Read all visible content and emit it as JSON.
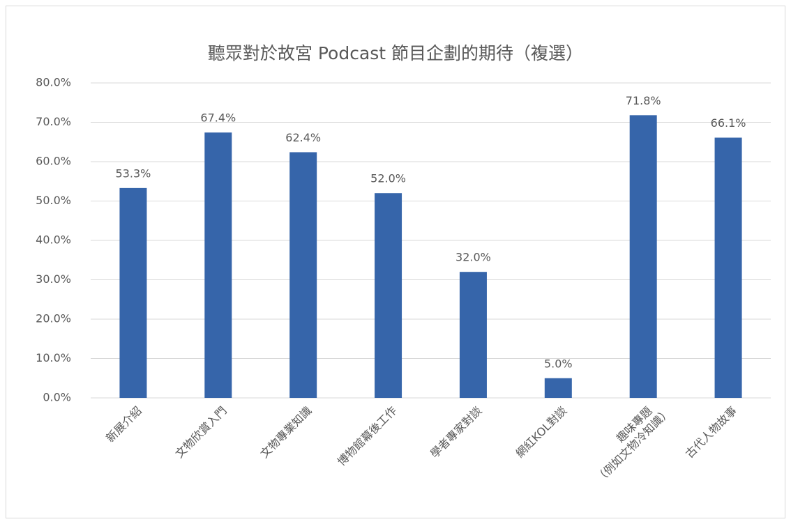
{
  "chart_data": {
    "type": "bar",
    "title": "聽眾對於故宮 Podcast 節目企劃的期待（複選）",
    "categories": [
      "新展介紹",
      "文物欣賞入門",
      "文物專業知識",
      "博物館幕後工作",
      "學者專家對談",
      "網紅KOL對談",
      "趣味專題\n（例如文物冷知識）",
      "古代人物故事"
    ],
    "values": [
      53.3,
      67.4,
      62.4,
      52.0,
      32.0,
      5.0,
      71.8,
      66.1
    ],
    "value_labels": [
      "53.3%",
      "67.4%",
      "62.4%",
      "52.0%",
      "32.0%",
      "5.0%",
      "71.8%",
      "66.1%"
    ],
    "color": "#3665aa",
    "ylim": [
      0,
      80
    ],
    "yticks": [
      {
        "value": 0,
        "label": "0.0%"
      },
      {
        "value": 10,
        "label": "10.0%"
      },
      {
        "value": 20,
        "label": "20.0%"
      },
      {
        "value": 30,
        "label": "30.0%"
      },
      {
        "value": 40,
        "label": "40.0%"
      },
      {
        "value": 50,
        "label": "50.0%"
      },
      {
        "value": 60,
        "label": "60.0%"
      },
      {
        "value": 70,
        "label": "70.0%"
      },
      {
        "value": 80,
        "label": "80.0%"
      }
    ],
    "grid": true
  }
}
